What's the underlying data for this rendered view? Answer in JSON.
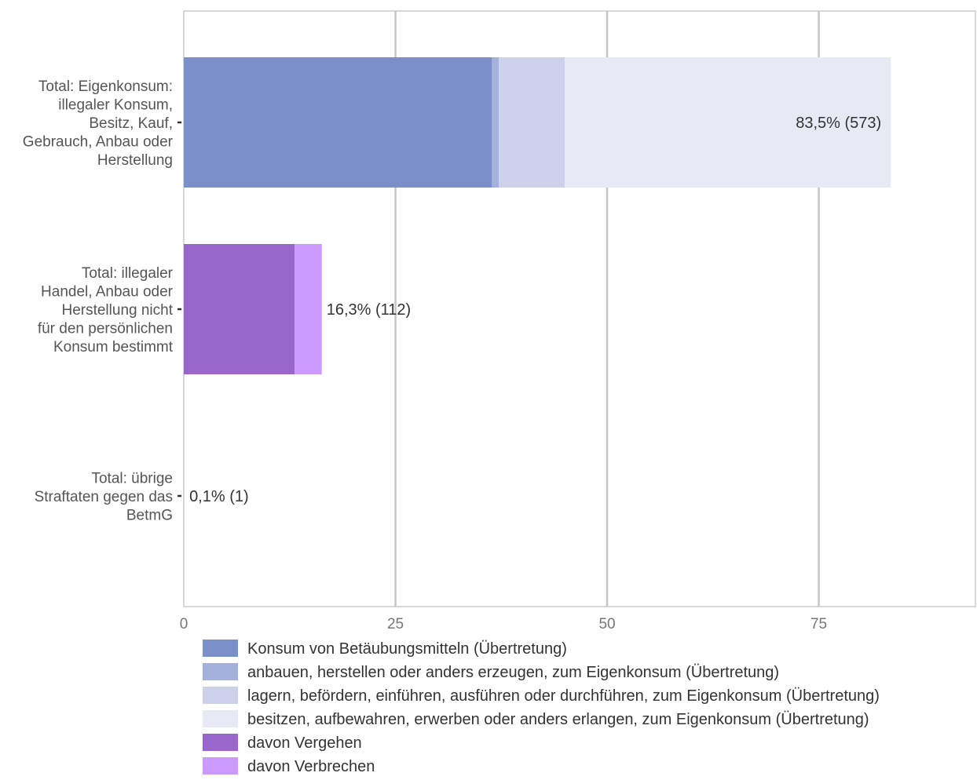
{
  "chart_data": {
    "type": "bar",
    "orientation": "horizontal",
    "stacked": true,
    "xlim": [
      0,
      93.5
    ],
    "x_ticks": [
      0,
      25,
      50,
      75
    ],
    "x_tick_labels": [
      "0",
      "25",
      "50",
      "75"
    ],
    "grid": true,
    "legend_position": "bottom",
    "categories": [
      "Total: Eigenkonsum: illegaler Konsum, Besitz, Kauf, Gebrauch, Anbau oder Herstellung",
      "Total: illegaler Handel, Anbau oder Herstellung nicht für den persönlichen Konsum bestimmt",
      "Total: übrige Straftaten gegen das BetmG"
    ],
    "category_label_lines": [
      [
        "Total: Eigenkonsum:",
        "illegaler Konsum,",
        "Besitz, Kauf,",
        "Gebrauch, Anbau oder",
        "Herstellung"
      ],
      [
        "Total: illegaler",
        "Handel, Anbau oder",
        "Herstellung nicht",
        "für den persönlichen",
        "Konsum bestimmt"
      ],
      [
        "Total: übrige",
        "Straftaten gegen das",
        "BetmG"
      ]
    ],
    "series": [
      {
        "name": "Konsum von Betäubungsmitteln (Übertretung)",
        "color": "#7b8fc8",
        "values": [
          36.4,
          0,
          0
        ]
      },
      {
        "name": "anbauen, herstellen oder anders erzeugen, zum Eigenkonsum (Übertretung)",
        "color": "#a5b0dc",
        "values": [
          0.8,
          0,
          0
        ]
      },
      {
        "name": "lagern, befördern, einführen, ausführen oder durchführen, zum Eigenkonsum (Übertretung)",
        "color": "#ccd2ea",
        "values": [
          7.8,
          0,
          0
        ]
      },
      {
        "name": "besitzen, aufbewahren, erwerben oder anders erlangen, zum Eigenkonsum (Übertretung)",
        "color": "#e7eaf5",
        "values": [
          38.5,
          0,
          0
        ]
      },
      {
        "name": "davon Vergehen",
        "color": "#9966cc",
        "values": [
          0,
          13.1,
          0
        ]
      },
      {
        "name": "davon Verbrechen",
        "color": "#cc99ff",
        "values": [
          0,
          3.2,
          0
        ]
      }
    ],
    "totals": [
      83.5,
      16.3,
      0.1
    ],
    "data_labels": [
      "83,5% (573)",
      "16,3% (112)",
      "0,1% (1)"
    ],
    "data_label_positions": [
      "inside-end",
      "outside-end",
      "outside-end"
    ]
  }
}
